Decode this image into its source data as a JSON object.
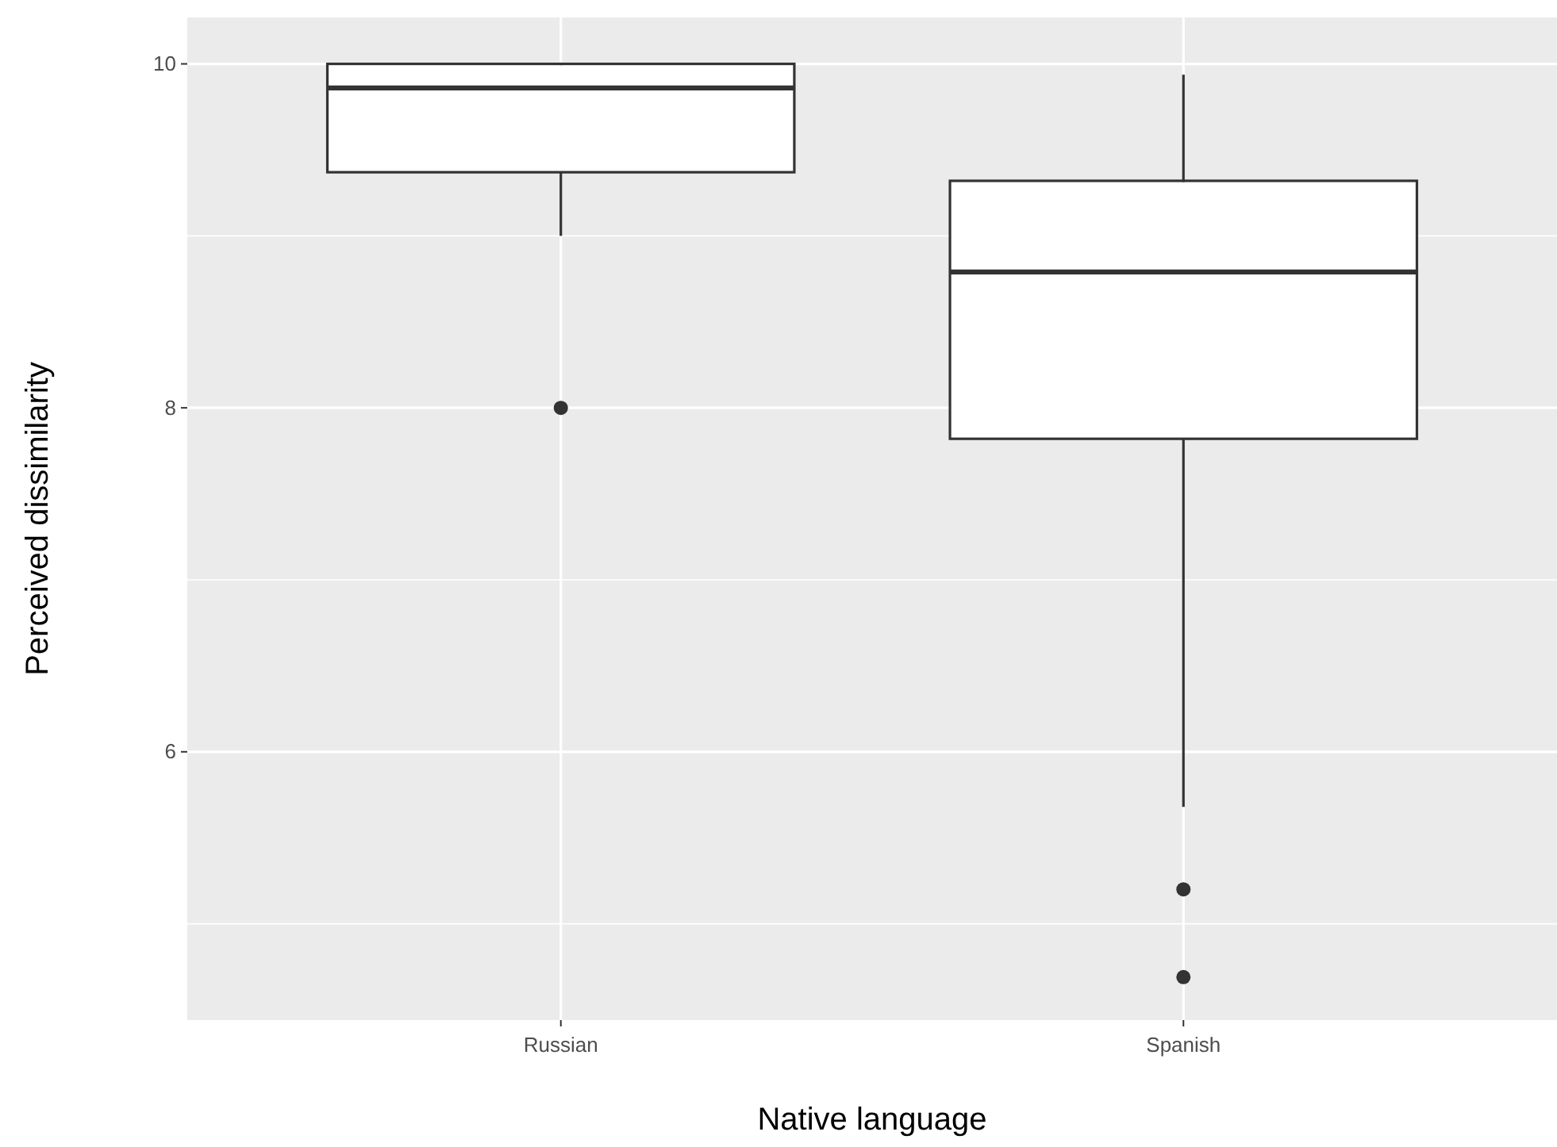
{
  "chart_data": {
    "type": "box",
    "xlabel": "Native language",
    "ylabel": "Perceived dissimilarity",
    "categories": [
      "Russian",
      "Spanish"
    ],
    "boxes": [
      {
        "low": 9.0,
        "q1": 9.37,
        "median": 9.86,
        "q3": 10.0,
        "high": 10.0,
        "outliers": [
          8.0
        ]
      },
      {
        "low": 5.68,
        "q1": 7.82,
        "median": 8.79,
        "q3": 9.32,
        "high": 9.93,
        "outliers": [
          5.2,
          4.69
        ]
      }
    ],
    "ylim": [
      4.44,
      10.27
    ],
    "yticks": [
      {
        "value": 5,
        "label": null
      },
      6,
      {
        "value": 7,
        "label": null
      },
      8,
      {
        "value": 9,
        "label": null
      },
      10
    ],
    "grid": true
  }
}
